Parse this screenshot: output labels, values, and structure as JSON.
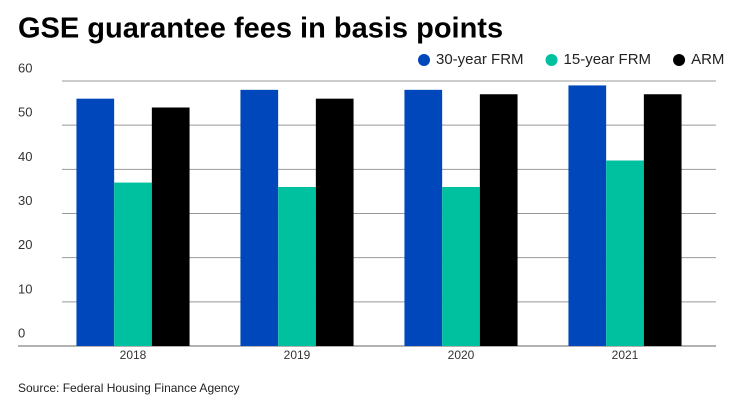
{
  "chart_data": {
    "type": "bar",
    "title": "GSE guarantee fees in basis points",
    "source": "Source: Federal Housing Finance Agency",
    "categories": [
      "2018",
      "2019",
      "2020",
      "2021"
    ],
    "series": [
      {
        "name": "30-year FRM",
        "color": "#0047bb",
        "values": [
          56,
          58,
          58,
          59
        ]
      },
      {
        "name": "15-year FRM",
        "color": "#00c19f",
        "values": [
          37,
          36,
          36,
          42
        ]
      },
      {
        "name": "ARM",
        "color": "#000000",
        "values": [
          54,
          56,
          57,
          57
        ]
      }
    ],
    "ylim": [
      0,
      60
    ],
    "yticks": [
      0,
      10,
      20,
      30,
      40,
      50,
      60
    ],
    "grid": true,
    "legend_position": "top-right"
  }
}
